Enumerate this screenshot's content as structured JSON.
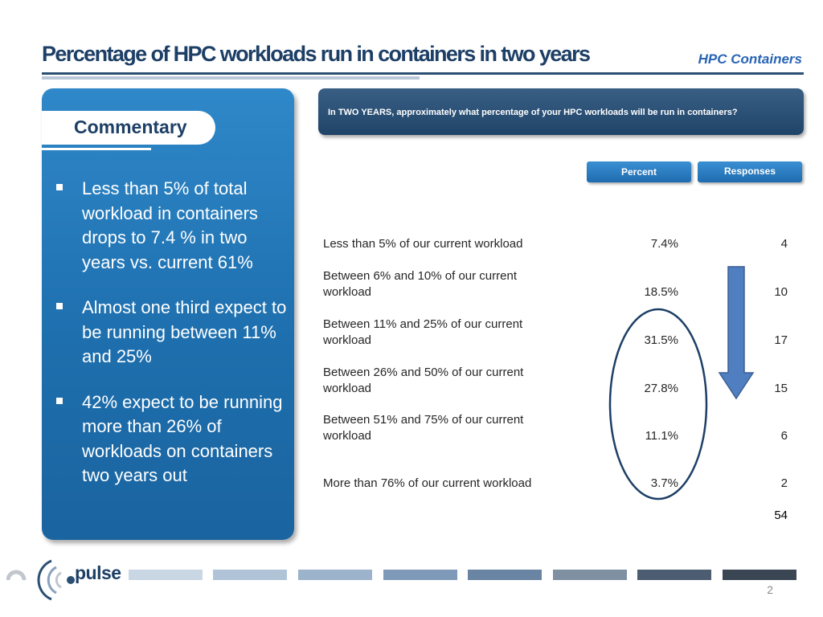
{
  "header": {
    "title": "Percentage of HPC workloads run in containers in two years",
    "section_tag": "HPC Containers"
  },
  "commentary": {
    "heading": "Commentary",
    "bullets": [
      "Less than 5% of total workload in containers drops to 7.4 %  in two years vs. current 61%",
      "Almost one third expect to be running between 11% and 25%",
      "42% expect to be running more than 26% of workloads on containers two years out"
    ]
  },
  "question": "In TWO YEARS, approximately what percentage of your HPC workloads will be run in containers?",
  "columns": {
    "percent": "Percent",
    "responses": "Responses"
  },
  "rows": [
    {
      "label": "Less than 5% of our current workload",
      "percent": "7.4%",
      "responses": "4"
    },
    {
      "label": "Between 6% and 10% of our current workload",
      "percent": "18.5%",
      "responses": "10"
    },
    {
      "label": "Between 11% and 25% of our current workload",
      "percent": "31.5%",
      "responses": "17"
    },
    {
      "label": "Between 26% and 50% of our current workload",
      "percent": "27.8%",
      "responses": "15"
    },
    {
      "label": "Between 51% and 75% of our current workload",
      "percent": "11.1%",
      "responses": "6"
    },
    {
      "label": "More than 76% of our current workload",
      "percent": "3.7%",
      "responses": "2"
    }
  ],
  "total_responses": "54",
  "footer": {
    "logo_text": "pulse",
    "page_number": "2"
  },
  "colors": {
    "title": "#1d3f66",
    "accent": "#2a64b4",
    "panel": "#1e6fae",
    "ellipse": "#1d3f66",
    "arrow": "#4f7fc0",
    "footer_bars": [
      "#c9d6e3",
      "#b0c3d7",
      "#9cb3cb",
      "#7f9ab8",
      "#6a84a3",
      "#8090a3",
      "#4c5d72",
      "#3b4655"
    ]
  }
}
